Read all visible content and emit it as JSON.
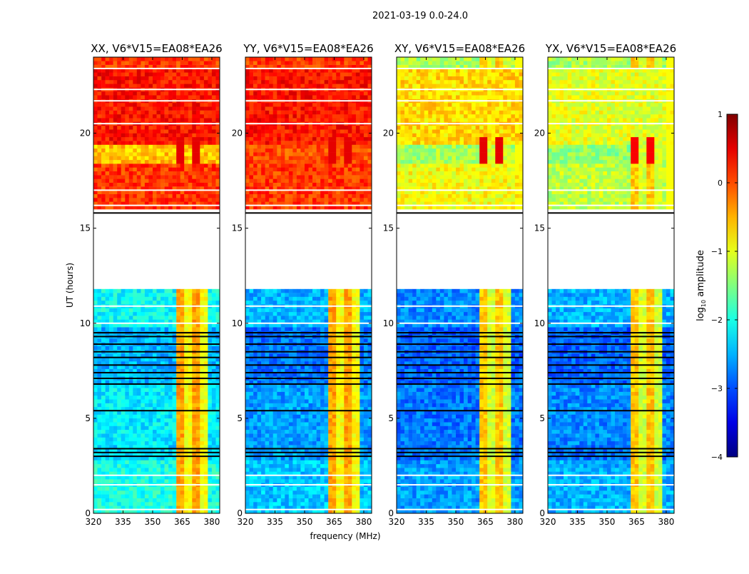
{
  "suptitle": "2021-03-19 0.0-24.0",
  "colorbar": {
    "label": "log",
    "label_sub": "10",
    "label_rest": " amplitude",
    "range": [
      -4,
      1
    ],
    "ticks": [
      1,
      0,
      -1,
      -2,
      -3,
      -4
    ],
    "tick_labels": [
      "1",
      "0",
      "−1",
      "−2",
      "−3",
      "−4"
    ],
    "colormap": "jet"
  },
  "chart_data": [
    {
      "type": "heatmap",
      "title": "XX, V6*V15=EA08*EA26",
      "xlabel": "",
      "ylabel": "UT (hours)",
      "xlim": [
        320,
        384
      ],
      "ylim": [
        0,
        24
      ],
      "xticks": [
        320,
        335,
        350,
        365,
        380
      ],
      "xtick_labels": [
        "320",
        "335",
        "350",
        "365",
        "380"
      ],
      "yticks": [
        0,
        5,
        10,
        15,
        20
      ],
      "ytick_labels": [
        "0",
        "5",
        "10",
        "15",
        "20"
      ],
      "segments": [
        {
          "t": [
            0,
            2.8
          ],
          "level": -2.0
        },
        {
          "t": [
            2.8,
            3.6
          ],
          "level": -2.3
        },
        {
          "t": [
            3.6,
            6.7
          ],
          "level": -2.2
        },
        {
          "t": [
            6.7,
            9.6
          ],
          "level": -2.5
        },
        {
          "t": [
            9.6,
            11.6
          ],
          "level": -2.1
        },
        {
          "t": [
            15.8,
            18.3
          ],
          "level": 0.1
        },
        {
          "t": [
            18.3,
            19.3
          ],
          "level": -0.6
        },
        {
          "t": [
            19.3,
            23.3
          ],
          "level": 0.3
        },
        {
          "t": [
            23.3,
            24
          ],
          "level": 0.1
        }
      ],
      "rfi": {
        "f": [
          362,
          378
        ],
        "level": -0.6,
        "strong_t": [
          18.3,
          19.6
        ],
        "strong_level": 0.5
      },
      "flagged_hours": [
        3.0,
        3.2,
        3.4,
        5.4,
        6.8,
        7.1,
        7.4,
        7.8,
        8.2,
        8.5,
        8.9,
        9.3,
        9.5
      ],
      "gap_hours": [
        0.2,
        1.5,
        2.0,
        10.0,
        10.9,
        16.2,
        17.0,
        20.5,
        21.7,
        22.3,
        23.4
      ]
    },
    {
      "type": "heatmap",
      "title": "YY, V6*V15=EA08*EA26",
      "xlabel": "frequency (MHz)",
      "ylabel": "",
      "xlim": [
        320,
        384
      ],
      "ylim": [
        0,
        24
      ],
      "xticks": [
        320,
        335,
        350,
        365,
        380
      ],
      "xtick_labels": [
        "320",
        "335",
        "350",
        "365",
        "380"
      ],
      "yticks": [
        0,
        5,
        10,
        15,
        20
      ],
      "ytick_labels": [
        "0",
        "5",
        "10",
        "15",
        "20"
      ],
      "segments": [
        {
          "t": [
            0,
            2.8
          ],
          "level": -2.4
        },
        {
          "t": [
            2.8,
            3.6
          ],
          "level": -2.6
        },
        {
          "t": [
            3.6,
            6.7
          ],
          "level": -2.6
        },
        {
          "t": [
            6.7,
            9.6
          ],
          "level": -2.8
        },
        {
          "t": [
            9.6,
            11.6
          ],
          "level": -2.5
        },
        {
          "t": [
            15.8,
            18.3
          ],
          "level": 0.1
        },
        {
          "t": [
            18.3,
            19.3
          ],
          "level": 0.0
        },
        {
          "t": [
            19.3,
            23.3
          ],
          "level": 0.3
        },
        {
          "t": [
            23.3,
            24
          ],
          "level": 0.1
        }
      ],
      "rfi": {
        "f": [
          362,
          378
        ],
        "level": -0.6,
        "strong_t": [
          18.3,
          19.6
        ],
        "strong_level": 0.5
      },
      "flagged_hours": [
        3.0,
        3.2,
        3.4,
        5.4,
        6.8,
        7.1,
        7.4,
        7.8,
        8.2,
        8.5,
        8.9,
        9.3,
        9.5
      ],
      "gap_hours": [
        0.2,
        1.5,
        2.0,
        10.0,
        10.9,
        16.2,
        17.0,
        20.5,
        21.7,
        22.3,
        23.4
      ]
    },
    {
      "type": "heatmap",
      "title": "XY, V6*V15=EA08*EA26",
      "xlabel": "",
      "ylabel": "",
      "xlim": [
        320,
        384
      ],
      "ylim": [
        0,
        24
      ],
      "xticks": [
        320,
        335,
        350,
        365,
        380
      ],
      "xtick_labels": [
        "320",
        "335",
        "350",
        "365",
        "380"
      ],
      "yticks": [
        0,
        5,
        10,
        15,
        20
      ],
      "ytick_labels": [
        "0",
        "5",
        "10",
        "15",
        "20"
      ],
      "segments": [
        {
          "t": [
            0,
            2.8
          ],
          "level": -2.6
        },
        {
          "t": [
            2.8,
            3.6
          ],
          "level": -2.8
        },
        {
          "t": [
            3.6,
            6.7
          ],
          "level": -2.8
        },
        {
          "t": [
            6.7,
            9.6
          ],
          "level": -2.9
        },
        {
          "t": [
            9.6,
            11.6
          ],
          "level": -2.7
        },
        {
          "t": [
            15.8,
            18.3
          ],
          "level": -0.9
        },
        {
          "t": [
            18.3,
            19.3
          ],
          "level": -1.3
        },
        {
          "t": [
            19.3,
            23.3
          ],
          "level": -0.7
        },
        {
          "t": [
            23.3,
            24
          ],
          "level": -1.3
        }
      ],
      "rfi": {
        "f": [
          362,
          378
        ],
        "level": -0.8,
        "strong_t": [
          18.3,
          19.6
        ],
        "strong_level": 0.5
      },
      "flagged_hours": [
        3.0,
        3.2,
        3.4,
        5.4,
        6.8,
        7.1,
        7.4,
        7.8,
        8.2,
        8.5,
        8.9,
        9.3,
        9.5
      ],
      "gap_hours": [
        0.2,
        1.5,
        2.0,
        10.0,
        10.9,
        16.2,
        17.0,
        20.5,
        21.7,
        22.3,
        23.4
      ]
    },
    {
      "type": "heatmap",
      "title": "YX, V6*V15=EA08*EA26",
      "xlabel": "",
      "ylabel": "",
      "xlim": [
        320,
        384
      ],
      "ylim": [
        0,
        24
      ],
      "xticks": [
        320,
        335,
        350,
        365,
        380
      ],
      "xtick_labels": [
        "320",
        "335",
        "350",
        "365",
        "380"
      ],
      "yticks": [
        0,
        5,
        10,
        15,
        20
      ],
      "ytick_labels": [
        "0",
        "5",
        "10",
        "15",
        "20"
      ],
      "segments": [
        {
          "t": [
            0,
            2.8
          ],
          "level": -2.5
        },
        {
          "t": [
            2.8,
            3.6
          ],
          "level": -2.8
        },
        {
          "t": [
            3.6,
            6.7
          ],
          "level": -2.7
        },
        {
          "t": [
            6.7,
            9.6
          ],
          "level": -2.9
        },
        {
          "t": [
            9.6,
            11.6
          ],
          "level": -2.5
        },
        {
          "t": [
            15.8,
            18.3
          ],
          "level": -1.2
        },
        {
          "t": [
            18.3,
            19.3
          ],
          "level": -1.4
        },
        {
          "t": [
            19.3,
            23.3
          ],
          "level": -1.0
        },
        {
          "t": [
            23.3,
            24
          ],
          "level": -1.3
        }
      ],
      "rfi": {
        "f": [
          362,
          378
        ],
        "level": -0.8,
        "strong_t": [
          18.3,
          19.6
        ],
        "strong_level": 0.4
      },
      "flagged_hours": [
        3.0,
        3.2,
        3.4,
        5.4,
        6.8,
        7.1,
        7.4,
        7.8,
        8.2,
        8.5,
        8.9,
        9.3,
        9.5
      ],
      "gap_hours": [
        0.2,
        1.5,
        2.0,
        10.0,
        10.9,
        16.2,
        17.0,
        20.5,
        21.7,
        22.3,
        23.4
      ]
    }
  ]
}
